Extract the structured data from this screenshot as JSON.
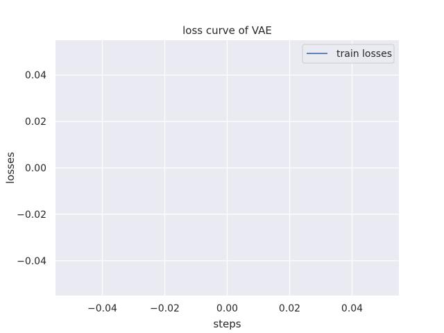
{
  "chart_data": {
    "type": "line",
    "title": "loss curve of VAE",
    "xlabel": "steps",
    "ylabel": "losses",
    "xlim": [
      -0.055,
      0.055
    ],
    "ylim": [
      -0.055,
      0.055
    ],
    "x_ticks": [
      -0.04,
      -0.02,
      0.0,
      0.02,
      0.04
    ],
    "x_tick_labels": [
      "−0.04",
      "−0.02",
      "0.00",
      "0.02",
      "0.04"
    ],
    "y_ticks": [
      -0.04,
      -0.02,
      0.0,
      0.02,
      0.04
    ],
    "y_tick_labels": [
      "−0.04",
      "−0.02",
      "0.00",
      "0.02",
      "0.04"
    ],
    "grid": true,
    "legend_position": "top-right",
    "series": [
      {
        "name": "train losses",
        "x": [],
        "y": [],
        "color": "#4c72b0"
      }
    ],
    "colors": {
      "plot_background": "#eaeaf2",
      "grid": "#ffffff",
      "text": "#262626",
      "legend_border": "#cccccc"
    }
  }
}
